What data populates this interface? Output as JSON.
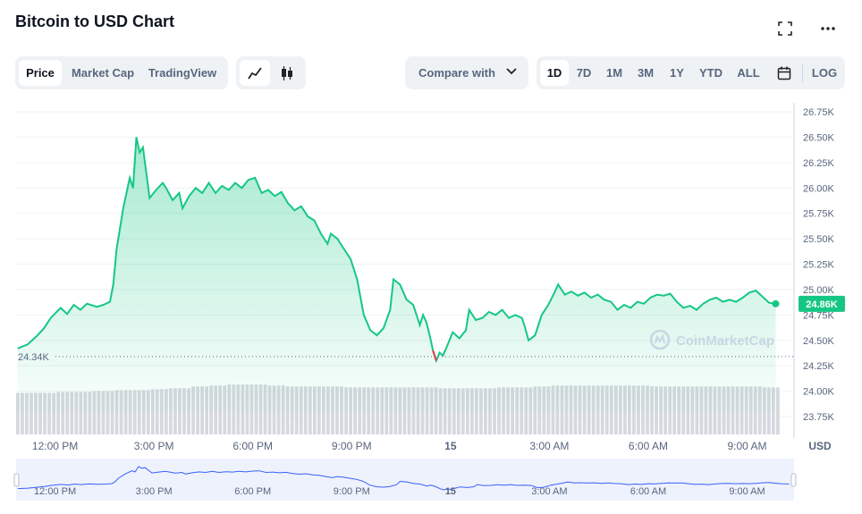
{
  "header": {
    "title": "Bitcoin to USD Chart"
  },
  "icons": {
    "fullscreen": "fullscreen-icon",
    "more": "more-dots-icon",
    "line": "line-chart-icon",
    "candle": "candlestick-icon",
    "calendar": "calendar-icon",
    "chevron": "chevron-down-icon",
    "watermark": "coinmarketcap-logo"
  },
  "tabs": [
    "Price",
    "Market Cap",
    "TradingView"
  ],
  "compare": {
    "label": "Compare with"
  },
  "ranges": [
    "1D",
    "7D",
    "1M",
    "3M",
    "1Y",
    "YTD",
    "ALL"
  ],
  "log_label": "LOG",
  "watermark": "CoinMarketCap",
  "colors": {
    "accent": "#16c784",
    "down": "#ea3943",
    "text": "#0d1421",
    "muted": "#58667e",
    "badge": "#16c784"
  },
  "chart_data": {
    "type": "area",
    "title": "Bitcoin to USD Chart",
    "currency_label": "USD",
    "ylim": [
      23.6,
      26.85
    ],
    "y_unit": "K USD",
    "y_ticks": [
      "26.75K",
      "26.50K",
      "26.25K",
      "26.00K",
      "25.75K",
      "25.50K",
      "25.25K",
      "25.00K",
      "24.75K",
      "24.50K",
      "24.25K",
      "24.00K",
      "23.75K"
    ],
    "y_tick_values": [
      26.75,
      26.5,
      26.25,
      26.0,
      25.75,
      25.5,
      25.25,
      25.0,
      24.75,
      24.5,
      24.25,
      24.0,
      23.75
    ],
    "x_ticks": [
      "12:00 PM",
      "3:00 PM",
      "6:00 PM",
      "9:00 PM",
      "15",
      "3:00 AM",
      "6:00 AM",
      "9:00 AM"
    ],
    "x_tick_hours": [
      12,
      15,
      18,
      21,
      24,
      27,
      30,
      33
    ],
    "open_reference": {
      "label": "24.34K",
      "value": 24.34
    },
    "current_price": {
      "label": "24.86K",
      "value": 24.86
    },
    "price_series": [
      [
        11.6,
        24.42
      ],
      [
        11.9,
        24.46
      ],
      [
        12.2,
        24.55
      ],
      [
        12.4,
        24.62
      ],
      [
        12.6,
        24.72
      ],
      [
        12.9,
        24.82
      ],
      [
        13.1,
        24.76
      ],
      [
        13.3,
        24.85
      ],
      [
        13.5,
        24.8
      ],
      [
        13.7,
        24.86
      ],
      [
        14.0,
        24.83
      ],
      [
        14.2,
        24.85
      ],
      [
        14.4,
        24.88
      ],
      [
        14.5,
        25.05
      ],
      [
        14.6,
        25.4
      ],
      [
        14.8,
        25.8
      ],
      [
        15.0,
        26.1
      ],
      [
        15.1,
        26.0
      ],
      [
        15.2,
        26.5
      ],
      [
        15.3,
        26.35
      ],
      [
        15.4,
        26.4
      ],
      [
        15.5,
        26.15
      ],
      [
        15.6,
        25.9
      ],
      [
        15.8,
        25.98
      ],
      [
        16.0,
        26.05
      ],
      [
        16.1,
        26.0
      ],
      [
        16.3,
        25.88
      ],
      [
        16.5,
        25.95
      ],
      [
        16.6,
        25.8
      ],
      [
        16.8,
        25.92
      ],
      [
        17.0,
        26.0
      ],
      [
        17.2,
        25.95
      ],
      [
        17.4,
        26.05
      ],
      [
        17.6,
        25.95
      ],
      [
        17.8,
        26.02
      ],
      [
        18.0,
        25.98
      ],
      [
        18.2,
        26.05
      ],
      [
        18.4,
        26.0
      ],
      [
        18.6,
        26.08
      ],
      [
        18.8,
        26.1
      ],
      [
        19.0,
        25.95
      ],
      [
        19.2,
        25.98
      ],
      [
        19.4,
        25.92
      ],
      [
        19.6,
        25.96
      ],
      [
        19.8,
        25.85
      ],
      [
        20.0,
        25.78
      ],
      [
        20.2,
        25.82
      ],
      [
        20.4,
        25.72
      ],
      [
        20.6,
        25.68
      ],
      [
        20.8,
        25.55
      ],
      [
        21.0,
        25.45
      ],
      [
        21.1,
        25.55
      ],
      [
        21.3,
        25.5
      ],
      [
        21.5,
        25.4
      ],
      [
        21.7,
        25.3
      ],
      [
        21.9,
        25.1
      ],
      [
        22.1,
        24.75
      ],
      [
        22.3,
        24.6
      ],
      [
        22.5,
        24.55
      ],
      [
        22.7,
        24.62
      ],
      [
        22.9,
        24.8
      ],
      [
        23.0,
        25.1
      ],
      [
        23.2,
        25.05
      ],
      [
        23.4,
        24.9
      ],
      [
        23.6,
        24.85
      ],
      [
        23.8,
        24.65
      ],
      [
        23.9,
        24.75
      ],
      [
        24.0,
        24.68
      ],
      [
        24.1,
        24.55
      ],
      [
        24.2,
        24.4
      ],
      [
        24.3,
        24.3
      ],
      [
        24.4,
        24.38
      ],
      [
        24.5,
        24.35
      ],
      [
        24.6,
        24.42
      ],
      [
        24.8,
        24.58
      ],
      [
        25.0,
        24.52
      ],
      [
        25.2,
        24.6
      ],
      [
        25.3,
        24.8
      ],
      [
        25.5,
        24.7
      ],
      [
        25.7,
        24.72
      ],
      [
        25.9,
        24.78
      ],
      [
        26.1,
        24.75
      ],
      [
        26.3,
        24.8
      ],
      [
        26.5,
        24.72
      ],
      [
        26.7,
        24.75
      ],
      [
        26.9,
        24.72
      ],
      [
        27.0,
        24.62
      ],
      [
        27.1,
        24.5
      ],
      [
        27.3,
        24.55
      ],
      [
        27.5,
        24.75
      ],
      [
        27.7,
        24.85
      ],
      [
        27.9,
        24.98
      ],
      [
        28.0,
        25.05
      ],
      [
        28.2,
        24.95
      ],
      [
        28.4,
        24.98
      ],
      [
        28.6,
        24.94
      ],
      [
        28.8,
        24.97
      ],
      [
        29.0,
        24.92
      ],
      [
        29.2,
        24.95
      ],
      [
        29.4,
        24.9
      ],
      [
        29.6,
        24.88
      ],
      [
        29.8,
        24.8
      ],
      [
        30.0,
        24.85
      ],
      [
        30.2,
        24.82
      ],
      [
        30.4,
        24.88
      ],
      [
        30.6,
        24.86
      ],
      [
        30.8,
        24.92
      ],
      [
        31.0,
        24.95
      ],
      [
        31.2,
        24.94
      ],
      [
        31.4,
        24.96
      ],
      [
        31.6,
        24.88
      ],
      [
        31.8,
        24.82
      ],
      [
        32.0,
        24.84
      ],
      [
        32.2,
        24.8
      ],
      [
        32.4,
        24.86
      ],
      [
        32.6,
        24.9
      ],
      [
        32.8,
        24.92
      ],
      [
        33.0,
        24.88
      ],
      [
        33.2,
        24.9
      ],
      [
        33.4,
        24.88
      ],
      [
        33.6,
        24.92
      ],
      [
        33.8,
        24.97
      ],
      [
        34.0,
        24.99
      ],
      [
        34.2,
        24.93
      ],
      [
        34.4,
        24.87
      ],
      [
        34.6,
        24.86
      ]
    ],
    "volume_series_note": "volume bars (unlabeled)",
    "volume_levels": [
      0.45,
      0.45,
      0.46,
      0.46,
      0.47,
      0.48,
      0.48,
      0.49,
      0.5,
      0.52,
      0.53,
      0.54,
      0.54,
      0.53,
      0.52,
      0.52,
      0.52,
      0.51,
      0.51,
      0.51,
      0.51,
      0.51,
      0.5,
      0.5,
      0.5,
      0.51,
      0.51,
      0.52,
      0.53,
      0.53,
      0.53,
      0.53,
      0.53,
      0.52,
      0.52,
      0.52,
      0.52,
      0.52,
      0.52,
      0.51
    ],
    "grid": true,
    "navigator_x_ticks": [
      "12:00 PM",
      "3:00 PM",
      "6:00 PM",
      "9:00 PM",
      "15",
      "3:00 AM",
      "6:00 AM",
      "9:00 AM"
    ]
  }
}
